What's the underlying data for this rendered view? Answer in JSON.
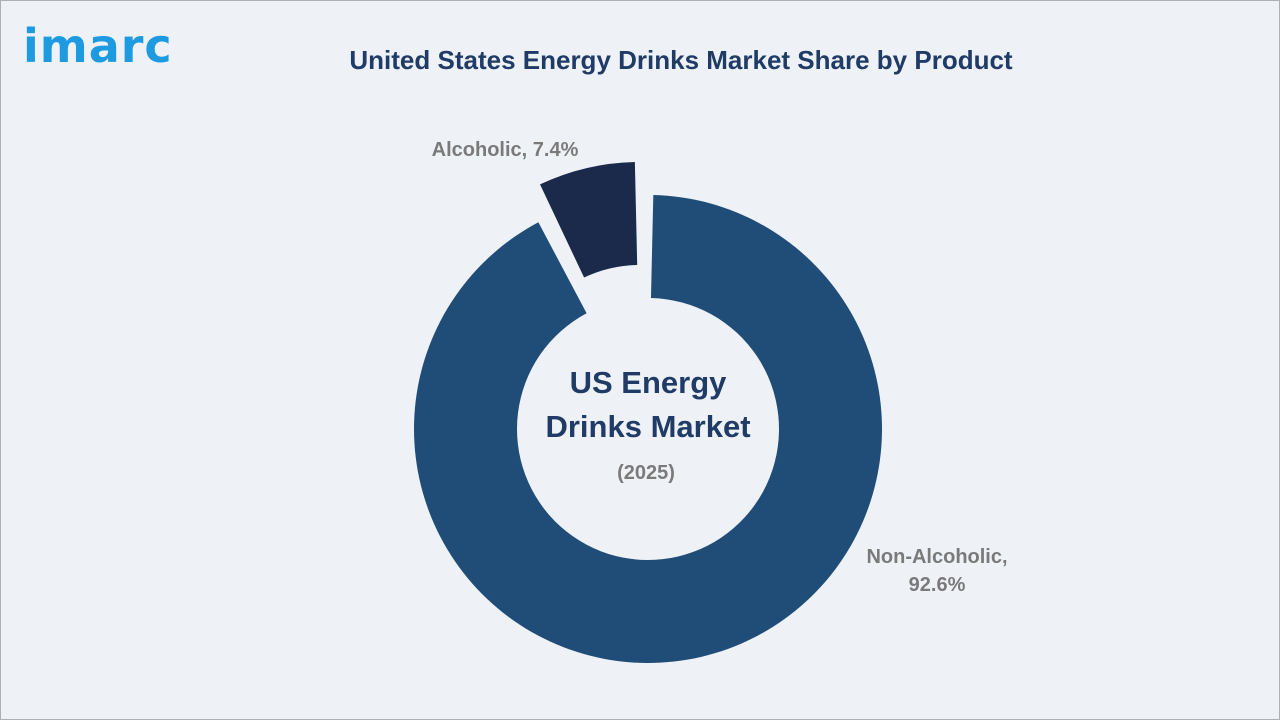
{
  "brand": {
    "logo_text": "imarc"
  },
  "chart_data": {
    "type": "pie",
    "title": "United States Energy Drinks Market Share by Product",
    "center_label": [
      "US Energy",
      "Drinks Market"
    ],
    "center_sublabel": "(2025)",
    "slices": [
      {
        "name": "Alcoholic",
        "value": 7.4,
        "color": "#1b2a4a",
        "label_lines": [
          "Alcoholic, 7.4%"
        ]
      },
      {
        "name": "Non-Alcoholic",
        "value": 92.6,
        "color": "#204d78",
        "label_lines": [
          "Non-Alcoholic,",
          "92.6%"
        ]
      }
    ],
    "legend": "none"
  }
}
